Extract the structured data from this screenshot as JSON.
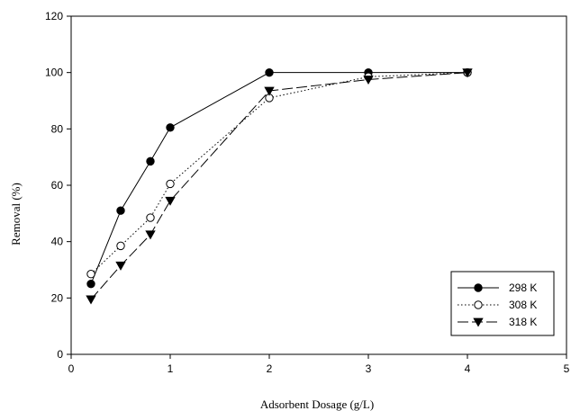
{
  "chart_data": {
    "type": "line",
    "xlabel": "Adsorbent Dosage (g/L)",
    "ylabel": "Removal (%)",
    "xlim": [
      0,
      5
    ],
    "ylim": [
      0,
      120
    ],
    "xticks": [
      "0",
      "1",
      "2",
      "3",
      "4",
      "5"
    ],
    "yticks": [
      "0",
      "20",
      "40",
      "60",
      "80",
      "100",
      "120"
    ],
    "grid": false,
    "legend_position": "bottom-right",
    "series": [
      {
        "name": "298 K",
        "marker": "filled-circle",
        "line_style": "solid",
        "x": [
          0.2,
          0.5,
          0.8,
          1,
          2,
          3,
          4
        ],
        "y": [
          25,
          51,
          68.5,
          80.5,
          100,
          100,
          100
        ]
      },
      {
        "name": "308 K",
        "marker": "open-circle",
        "line_style": "dotted",
        "x": [
          0.2,
          0.5,
          0.8,
          1,
          2,
          3,
          4
        ],
        "y": [
          28.5,
          38.5,
          48.5,
          60.5,
          91,
          98.5,
          100
        ]
      },
      {
        "name": "318 K",
        "marker": "filled-triangle-down",
        "line_style": "dashed",
        "x": [
          0.2,
          0.5,
          0.8,
          1,
          2,
          3,
          4
        ],
        "y": [
          19.5,
          31.5,
          42.5,
          54.5,
          93.5,
          97.5,
          100
        ]
      }
    ]
  }
}
